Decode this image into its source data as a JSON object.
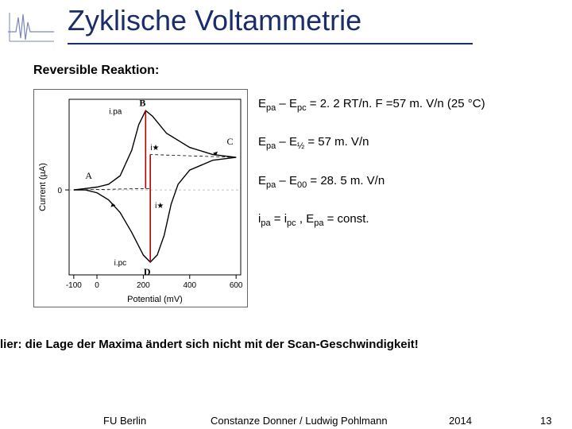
{
  "title": "Zyklische Voltammetrie",
  "title_color": "#1a2d6b",
  "title_fontsize": 36,
  "subtitle": "Reversible Reaktion:",
  "equations": {
    "eq1": {
      "lhs_a": "E",
      "sub_a": "pa",
      "op": " – ",
      "lhs_b": "E",
      "sub_b": "pc",
      "rhs": " = 2. 2 RT/n. F =57 m. V/n (25 °C)"
    },
    "eq2": {
      "lhs_a": "E",
      "sub_a": "pa",
      "op": " – ",
      "lhs_b": "E",
      "sub_b": "½",
      "rhs": " = 57 m. V/n"
    },
    "eq3": {
      "lhs_a": "E",
      "sub_a": "pa",
      "op": " – ",
      "lhs_b": "E",
      "sub_b": "00",
      "rhs": " = 28. 5 m. V/n"
    },
    "eq4": {
      "lhs_a": "i",
      "sub_a": "pa",
      "op": " = ",
      "lhs_b": "i",
      "sub_b": "pc",
      "rhs1": " ,  ",
      "lhs_c": "E",
      "sub_c": "pa",
      "rhs2": " = const."
    }
  },
  "note": "lier: die Lage der Maxima ändert sich nicht mit der Scan-Geschwindigkeit!",
  "footer": {
    "affil": "FU Berlin",
    "authors": "Constanze Donner / Ludwig Pohlmann",
    "year": "2014",
    "page": "13"
  },
  "cv_diagram": {
    "type": "cyclic-voltammogram",
    "xlim": [
      -120,
      620
    ],
    "ylim": [
      -3.0,
      3.2
    ],
    "x_ticks": [
      -100,
      0,
      200,
      400,
      600
    ],
    "y_tick_label": "0",
    "xlabel": "Potential (mV)",
    "ylabel": "Current (µA)",
    "label_fontsize": 11,
    "tick_fontsize": 10,
    "axis_color": "#000000",
    "curve_color": "#000000",
    "marker_line_color": "#b00000",
    "annotation_color": "#000000",
    "A_label": "A",
    "B_label": "B",
    "C_label": "C",
    "D_label": "D",
    "ipa_label": "i.pa",
    "ipc_label": "i.pc",
    "istar_label": "i★",
    "ist_label": "i★",
    "forward_curve": [
      [
        -100,
        0.0
      ],
      [
        -50,
        0.05
      ],
      [
        0,
        0.1
      ],
      [
        50,
        0.2
      ],
      [
        100,
        0.5
      ],
      [
        150,
        1.4
      ],
      [
        180,
        2.3
      ],
      [
        210,
        2.8
      ],
      [
        240,
        2.6
      ],
      [
        300,
        2.0
      ],
      [
        400,
        1.5
      ],
      [
        500,
        1.25
      ],
      [
        600,
        1.15
      ]
    ],
    "reverse_curve": [
      [
        600,
        1.15
      ],
      [
        500,
        1.05
      ],
      [
        400,
        0.7
      ],
      [
        350,
        0.2
      ],
      [
        320,
        -0.5
      ],
      [
        290,
        -1.6
      ],
      [
        260,
        -2.3
      ],
      [
        230,
        -2.55
      ],
      [
        200,
        -2.3
      ],
      [
        150,
        -1.5
      ],
      [
        100,
        -0.8
      ],
      [
        50,
        -0.35
      ],
      [
        0,
        -0.1
      ],
      [
        -50,
        0.0
      ],
      [
        -100,
        0.0
      ]
    ],
    "Epa_x": 210,
    "Epc_x": 230,
    "ipa_peak_y": 2.8,
    "ipc_peak_y": -2.55,
    "baseline_extrap_y_at_Epc": 1.25
  }
}
